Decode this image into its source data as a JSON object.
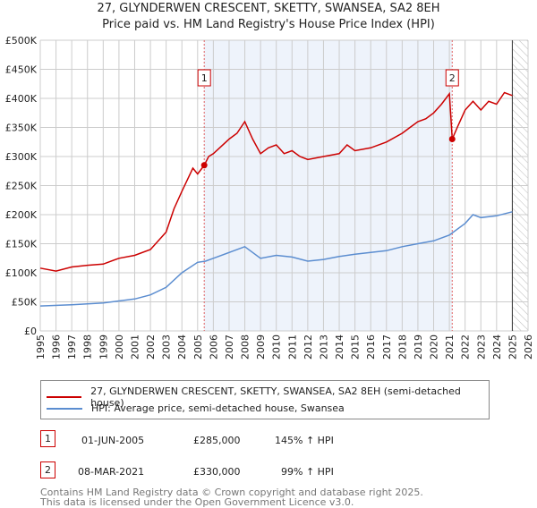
{
  "chart_data": {
    "type": "line",
    "title": "27, GLYNDERWEN CRESCENT, SKETTY, SWANSEA, SA2 8EH",
    "subtitle": "Price paid vs. HM Land Registry's House Price Index (HPI)",
    "xlim": [
      1995,
      2026
    ],
    "ylim": [
      0,
      500000
    ],
    "y_ticks": [
      {
        "v": 0,
        "l": "£0"
      },
      {
        "v": 50000,
        "l": "£50K"
      },
      {
        "v": 100000,
        "l": "£100K"
      },
      {
        "v": 150000,
        "l": "£150K"
      },
      {
        "v": 200000,
        "l": "£200K"
      },
      {
        "v": 250000,
        "l": "£250K"
      },
      {
        "v": 300000,
        "l": "£300K"
      },
      {
        "v": 350000,
        "l": "£350K"
      },
      {
        "v": 400000,
        "l": "£400K"
      },
      {
        "v": 450000,
        "l": "£450K"
      },
      {
        "v": 500000,
        "l": "£500K"
      }
    ],
    "x_ticks": [
      "1995",
      "1996",
      "1997",
      "1998",
      "1999",
      "2000",
      "2001",
      "2002",
      "2003",
      "2004",
      "2005",
      "2006",
      "2007",
      "2008",
      "2009",
      "2010",
      "2011",
      "2012",
      "2013",
      "2014",
      "2015",
      "2016",
      "2017",
      "2018",
      "2019",
      "2020",
      "2021",
      "2022",
      "2023",
      "2024",
      "2025",
      "2026"
    ],
    "grid": true,
    "shaded_range": [
      2005.42,
      2021.18
    ],
    "forecast_hatch_from": 2025.0,
    "series": [
      {
        "name": "27, GLYNDERWEN CRESCENT, SKETTY, SWANSEA, SA2 8EH (semi-detached house)",
        "color": "#cc0000",
        "x": [
          1995,
          1996,
          1997,
          1998,
          1999,
          2000,
          2001,
          2002,
          2003,
          2003.5,
          2004,
          2004.7,
          2005.0,
          2005.42,
          2005.7,
          2006,
          2007,
          2007.5,
          2008,
          2008.5,
          2009,
          2009.5,
          2010,
          2010.5,
          2011,
          2011.5,
          2012,
          2013,
          2014,
          2014.5,
          2015,
          2016,
          2017,
          2018,
          2018.5,
          2019,
          2019.5,
          2020,
          2020.5,
          2021.0,
          2021.18,
          2021.5,
          2022,
          2022.5,
          2023,
          2023.5,
          2024,
          2024.5,
          2025
        ],
        "y": [
          108000,
          103000,
          110000,
          113000,
          115000,
          125000,
          130000,
          140000,
          170000,
          210000,
          240000,
          280000,
          270000,
          285000,
          300000,
          305000,
          330000,
          340000,
          360000,
          330000,
          305000,
          315000,
          320000,
          305000,
          310000,
          300000,
          295000,
          300000,
          305000,
          320000,
          310000,
          315000,
          325000,
          340000,
          350000,
          360000,
          365000,
          375000,
          390000,
          408000,
          330000,
          350000,
          380000,
          395000,
          380000,
          395000,
          390000,
          410000,
          405000
        ]
      },
      {
        "name": "HPI: Average price, semi-detached house, Swansea",
        "color": "#5b8dd0",
        "x": [
          1995,
          1997,
          1999,
          2001,
          2002,
          2003,
          2004,
          2005,
          2005.5,
          2006,
          2007,
          2008,
          2008.5,
          2009,
          2010,
          2011,
          2012,
          2013,
          2014,
          2015,
          2016,
          2017,
          2018,
          2019,
          2020,
          2021,
          2022,
          2022.5,
          2023,
          2024,
          2025
        ],
        "y": [
          43000,
          45000,
          48000,
          55000,
          62000,
          75000,
          100000,
          118000,
          120000,
          125000,
          135000,
          145000,
          135000,
          125000,
          130000,
          127000,
          120000,
          123000,
          128000,
          132000,
          135000,
          138000,
          145000,
          150000,
          155000,
          165000,
          185000,
          200000,
          195000,
          198000,
          205000
        ]
      }
    ],
    "sales": [
      {
        "label": "1",
        "x": 2005.42,
        "y": 285000,
        "date": "01-JUN-2005",
        "price": "£285,000",
        "hpi": "145% ↑ HPI"
      },
      {
        "label": "2",
        "x": 2021.18,
        "y": 330000,
        "date": "08-MAR-2021",
        "price": "£330,000",
        "hpi": "99% ↑ HPI"
      }
    ]
  },
  "footer": {
    "line1": "Contains HM Land Registry data © Crown copyright and database right 2025.",
    "line2": "This data is licensed under the Open Government Licence v3.0."
  }
}
